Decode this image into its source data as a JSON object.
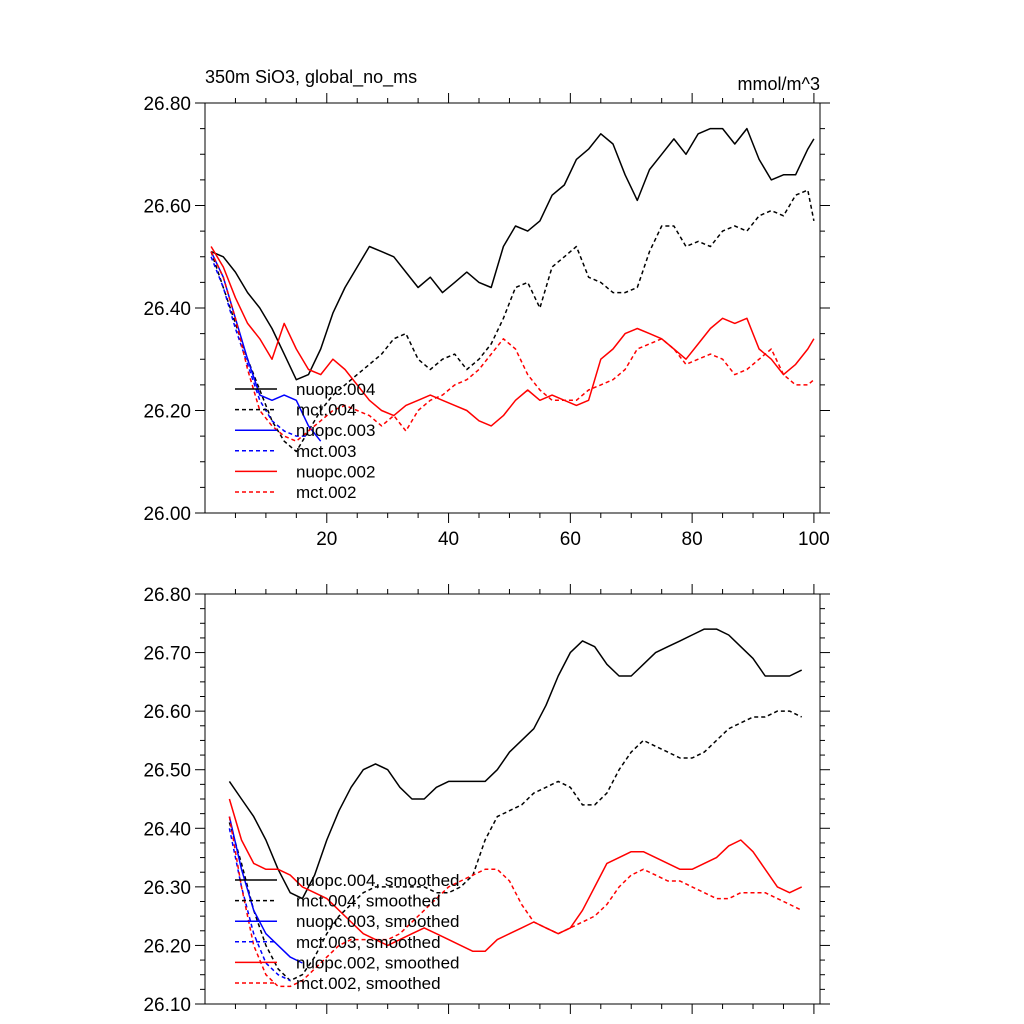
{
  "chart_data": [
    {
      "type": "line",
      "title": "350m SiO3, global_no_ms",
      "units_label": "mmol/m^3",
      "xlabel": "",
      "ylabel": "",
      "xlim": [
        0,
        101
      ],
      "ylim": [
        26.0,
        26.8
      ],
      "x_ticks": [
        20,
        40,
        60,
        80,
        100
      ],
      "x_tick_labels": [
        "20",
        "40",
        "60",
        "80",
        "100"
      ],
      "y_ticks": [
        26.0,
        26.2,
        26.4,
        26.6,
        26.8
      ],
      "y_tick_labels": [
        "26.00",
        "26.20",
        "26.40",
        "26.60",
        "26.80"
      ],
      "legend_position": "bottom-left",
      "series": [
        {
          "name": "nuopc.004",
          "color": "#000000",
          "dash": "solid",
          "x": [
            1,
            3,
            5,
            7,
            9,
            11,
            13,
            15,
            17,
            19,
            21,
            23,
            25,
            27,
            29,
            31,
            33,
            35,
            37,
            39,
            41,
            43,
            45,
            47,
            49,
            51,
            53,
            55,
            57,
            59,
            61,
            63,
            65,
            67,
            69,
            71,
            73,
            75,
            77,
            79,
            81,
            83,
            85,
            87,
            89,
            91,
            93,
            95,
            97,
            99,
            100
          ],
          "values": [
            26.51,
            26.5,
            26.47,
            26.43,
            26.4,
            26.36,
            26.31,
            26.26,
            26.27,
            26.32,
            26.39,
            26.44,
            26.48,
            26.52,
            26.51,
            26.5,
            26.47,
            26.44,
            26.46,
            26.43,
            26.45,
            26.47,
            26.45,
            26.44,
            26.52,
            26.56,
            26.55,
            26.57,
            26.62,
            26.64,
            26.69,
            26.71,
            26.74,
            26.72,
            26.66,
            26.61,
            26.67,
            26.7,
            26.73,
            26.7,
            26.74,
            26.75,
            26.75,
            26.72,
            26.75,
            26.69,
            26.65,
            26.66,
            26.66,
            26.71,
            26.73
          ]
        },
        {
          "name": "mct.004",
          "color": "#000000",
          "dash": "dashed",
          "x": [
            1,
            3,
            5,
            7,
            9,
            11,
            13,
            15,
            17,
            19,
            21,
            23,
            25,
            27,
            29,
            31,
            33,
            35,
            37,
            39,
            41,
            43,
            45,
            47,
            49,
            51,
            53,
            55,
            57,
            59,
            61,
            63,
            65,
            67,
            69,
            71,
            73,
            75,
            77,
            79,
            81,
            83,
            85,
            87,
            89,
            91,
            93,
            95,
            97,
            99,
            100
          ],
          "values": [
            26.51,
            26.44,
            26.37,
            26.3,
            26.24,
            26.18,
            26.14,
            26.12,
            26.16,
            26.2,
            26.23,
            26.25,
            26.27,
            26.29,
            26.31,
            26.34,
            26.35,
            26.3,
            26.28,
            26.3,
            26.31,
            26.28,
            26.3,
            26.33,
            26.38,
            26.44,
            26.45,
            26.4,
            26.48,
            26.5,
            26.52,
            26.46,
            26.45,
            26.43,
            26.43,
            26.44,
            26.51,
            26.56,
            26.56,
            26.52,
            26.53,
            26.52,
            26.55,
            26.56,
            26.55,
            26.58,
            26.59,
            26.58,
            26.62,
            26.63,
            26.57
          ]
        },
        {
          "name": "nuopc.003",
          "color": "#0000ff",
          "dash": "solid",
          "x": [
            1,
            3,
            5,
            7,
            9,
            11,
            13,
            15,
            17,
            19
          ],
          "values": [
            26.51,
            26.46,
            26.38,
            26.3,
            26.23,
            26.22,
            26.23,
            26.22,
            26.17,
            26.14
          ]
        },
        {
          "name": "mct.003",
          "color": "#0000ff",
          "dash": "dashed",
          "x": [
            1,
            3,
            5,
            7,
            9,
            11,
            13,
            15,
            17
          ],
          "values": [
            26.5,
            26.44,
            26.36,
            26.29,
            26.22,
            26.18,
            26.16,
            26.15,
            26.15
          ]
        },
        {
          "name": "nuopc.002",
          "color": "#ff0000",
          "dash": "solid",
          "x": [
            1,
            3,
            5,
            7,
            9,
            11,
            13,
            15,
            17,
            19,
            21,
            23,
            25,
            27,
            29,
            31,
            33,
            35,
            37,
            39,
            41,
            43,
            45,
            47,
            49,
            51,
            53,
            55,
            57,
            59,
            61,
            63,
            65,
            67,
            69,
            71,
            73,
            75,
            77,
            79,
            81,
            83,
            85,
            87,
            89,
            91,
            93,
            95,
            97,
            99,
            100
          ],
          "values": [
            26.52,
            26.48,
            26.42,
            26.37,
            26.34,
            26.3,
            26.37,
            26.32,
            26.28,
            26.27,
            26.3,
            26.28,
            26.25,
            26.22,
            26.2,
            26.19,
            26.21,
            26.22,
            26.23,
            26.22,
            26.21,
            26.2,
            26.18,
            26.17,
            26.19,
            26.22,
            26.24,
            26.22,
            26.23,
            26.22,
            26.21,
            26.22,
            26.3,
            26.32,
            26.35,
            26.36,
            26.35,
            26.34,
            26.32,
            26.3,
            26.33,
            26.36,
            26.38,
            26.37,
            26.38,
            26.32,
            26.3,
            26.27,
            26.29,
            26.32,
            26.34
          ]
        },
        {
          "name": "mct.002",
          "color": "#ff0000",
          "dash": "dashed",
          "x": [
            1,
            3,
            5,
            7,
            9,
            11,
            13,
            15,
            17,
            19,
            21,
            23,
            25,
            27,
            29,
            31,
            33,
            35,
            37,
            39,
            41,
            43,
            45,
            47,
            49,
            51,
            53,
            55,
            57,
            59,
            61,
            63,
            65,
            67,
            69,
            71,
            73,
            75,
            77,
            79,
            81,
            83,
            85,
            87,
            89,
            91,
            93,
            95,
            97,
            99,
            100
          ],
          "values": [
            26.51,
            26.46,
            26.38,
            26.28,
            26.2,
            26.17,
            26.15,
            26.14,
            26.16,
            26.18,
            26.2,
            26.21,
            26.2,
            26.19,
            26.17,
            26.19,
            26.16,
            26.2,
            26.22,
            26.23,
            26.25,
            26.26,
            26.28,
            26.31,
            26.34,
            26.32,
            26.27,
            26.24,
            26.22,
            26.22,
            26.22,
            26.24,
            26.25,
            26.26,
            26.28,
            26.32,
            26.33,
            26.34,
            26.32,
            26.29,
            26.3,
            26.31,
            26.3,
            26.27,
            26.28,
            26.3,
            26.32,
            26.27,
            26.25,
            26.25,
            26.26
          ]
        }
      ]
    },
    {
      "type": "line",
      "title": "",
      "xlabel": "",
      "ylabel": "",
      "xlim": [
        0,
        101
      ],
      "ylim": [
        26.1,
        26.8
      ],
      "x_ticks": [
        20,
        40,
        60,
        80,
        100
      ],
      "x_tick_labels": [],
      "y_ticks": [
        26.1,
        26.2,
        26.3,
        26.4,
        26.5,
        26.6,
        26.7,
        26.8
      ],
      "y_tick_labels": [
        "26.10",
        "26.20",
        "26.30",
        "26.40",
        "26.50",
        "26.60",
        "26.70",
        "26.80"
      ],
      "legend_position": "bottom-left",
      "series": [
        {
          "name": "nuopc.004, smoothed",
          "color": "#000000",
          "dash": "solid",
          "x": [
            4,
            6,
            8,
            10,
            12,
            14,
            16,
            18,
            20,
            22,
            24,
            26,
            28,
            30,
            32,
            34,
            36,
            38,
            40,
            42,
            44,
            46,
            48,
            50,
            52,
            54,
            56,
            58,
            60,
            62,
            64,
            66,
            68,
            70,
            72,
            74,
            76,
            78,
            80,
            82,
            84,
            86,
            88,
            90,
            92,
            94,
            96,
            98
          ],
          "values": [
            26.48,
            26.45,
            26.42,
            26.38,
            26.33,
            26.29,
            26.28,
            26.32,
            26.38,
            26.43,
            26.47,
            26.5,
            26.51,
            26.5,
            26.47,
            26.45,
            26.45,
            26.47,
            26.48,
            26.48,
            26.48,
            26.48,
            26.5,
            26.53,
            26.55,
            26.57,
            26.61,
            26.66,
            26.7,
            26.72,
            26.71,
            26.68,
            26.66,
            26.66,
            26.68,
            26.7,
            26.71,
            26.72,
            26.73,
            26.74,
            26.74,
            26.73,
            26.71,
            26.69,
            26.66,
            26.66,
            26.66,
            26.67
          ]
        },
        {
          "name": "mct.004, smoothed",
          "color": "#000000",
          "dash": "dashed",
          "x": [
            4,
            6,
            8,
            10,
            12,
            14,
            16,
            18,
            20,
            22,
            24,
            26,
            28,
            30,
            32,
            34,
            36,
            38,
            40,
            42,
            44,
            46,
            48,
            50,
            52,
            54,
            56,
            58,
            60,
            62,
            64,
            66,
            68,
            70,
            72,
            74,
            76,
            78,
            80,
            82,
            84,
            86,
            88,
            90,
            92,
            94,
            96,
            98
          ],
          "values": [
            26.41,
            26.34,
            26.26,
            26.2,
            26.16,
            26.14,
            26.15,
            26.18,
            26.22,
            26.25,
            26.27,
            26.29,
            26.3,
            26.3,
            26.3,
            26.3,
            26.3,
            26.29,
            26.29,
            26.3,
            26.32,
            26.38,
            26.42,
            26.43,
            26.44,
            26.46,
            26.47,
            26.48,
            26.47,
            26.44,
            26.44,
            26.46,
            26.5,
            26.53,
            26.55,
            26.54,
            26.53,
            26.52,
            26.52,
            26.53,
            26.55,
            26.57,
            26.58,
            26.59,
            26.59,
            26.6,
            26.6,
            26.59
          ]
        },
        {
          "name": "nuopc.003, smoothed",
          "color": "#0000ff",
          "dash": "solid",
          "x": [
            4,
            6,
            8,
            10,
            12,
            14,
            16
          ],
          "values": [
            26.42,
            26.33,
            26.26,
            26.22,
            26.2,
            26.18,
            26.17
          ]
        },
        {
          "name": "mct.003, smoothed",
          "color": "#0000ff",
          "dash": "dashed",
          "x": [
            4,
            6,
            8,
            10,
            12,
            14
          ],
          "values": [
            26.4,
            26.3,
            26.22,
            26.17,
            26.15,
            26.14
          ]
        },
        {
          "name": "nuopc.002, smoothed",
          "color": "#ff0000",
          "dash": "solid",
          "x": [
            4,
            6,
            8,
            10,
            12,
            14,
            16,
            18,
            20,
            22,
            24,
            26,
            28,
            30,
            32,
            34,
            36,
            38,
            40,
            42,
            44,
            46,
            48,
            50,
            52,
            54,
            56,
            58,
            60,
            62,
            64,
            66,
            68,
            70,
            72,
            74,
            76,
            78,
            80,
            82,
            84,
            86,
            88,
            90,
            92,
            94,
            96,
            98
          ],
          "values": [
            26.45,
            26.38,
            26.34,
            26.33,
            26.33,
            26.32,
            26.3,
            26.29,
            26.28,
            26.26,
            26.24,
            26.22,
            26.21,
            26.2,
            26.21,
            26.22,
            26.23,
            26.22,
            26.21,
            26.2,
            26.19,
            26.19,
            26.21,
            26.22,
            26.23,
            26.24,
            26.23,
            26.22,
            26.23,
            26.26,
            26.3,
            26.34,
            26.35,
            26.36,
            26.36,
            26.35,
            26.34,
            26.33,
            26.33,
            26.34,
            26.35,
            26.37,
            26.38,
            26.36,
            26.33,
            26.3,
            26.29,
            26.3
          ]
        },
        {
          "name": "mct.002, smoothed",
          "color": "#ff0000",
          "dash": "dashed",
          "x": [
            4,
            6,
            8,
            10,
            12,
            14,
            16,
            18,
            20,
            22,
            24,
            26,
            28,
            30,
            32,
            34,
            36,
            38,
            40,
            42,
            44,
            46,
            48,
            50,
            52,
            54,
            56,
            58,
            60,
            62,
            64,
            66,
            68,
            70,
            72,
            74,
            76,
            78,
            80,
            82,
            84,
            86,
            88,
            90,
            92,
            94,
            96,
            98
          ],
          "values": [
            26.42,
            26.3,
            26.2,
            26.15,
            26.13,
            26.13,
            26.14,
            26.16,
            26.18,
            26.2,
            26.21,
            26.21,
            26.21,
            26.21,
            26.22,
            26.24,
            26.26,
            26.28,
            26.3,
            26.31,
            26.32,
            26.33,
            26.33,
            26.31,
            26.27,
            26.24,
            26.23,
            26.22,
            26.23,
            26.24,
            26.25,
            26.27,
            26.3,
            26.32,
            26.33,
            26.32,
            26.31,
            26.31,
            26.3,
            26.29,
            26.28,
            26.28,
            26.29,
            26.29,
            26.29,
            26.28,
            26.27,
            26.26
          ]
        }
      ]
    }
  ]
}
